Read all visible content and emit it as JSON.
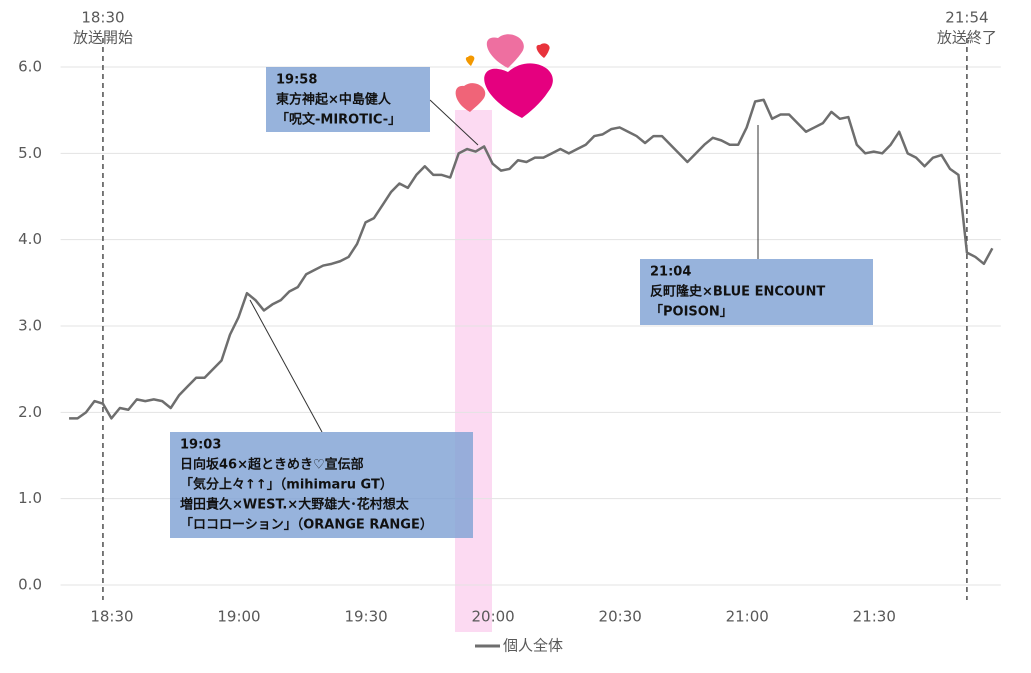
{
  "chart_data": {
    "type": "line",
    "x": [
      "18:22",
      "18:24",
      "18:26",
      "18:28",
      "18:30",
      "18:32",
      "18:34",
      "18:36",
      "18:38",
      "18:40",
      "18:42",
      "18:44",
      "18:46",
      "18:48",
      "18:50",
      "18:52",
      "18:54",
      "18:56",
      "18:58",
      "19:00",
      "19:02",
      "19:04",
      "19:06",
      "19:08",
      "19:10",
      "19:12",
      "19:14",
      "19:16",
      "19:18",
      "19:20",
      "19:22",
      "19:24",
      "19:26",
      "19:28",
      "19:30",
      "19:32",
      "19:34",
      "19:36",
      "19:38",
      "19:40",
      "19:42",
      "19:44",
      "19:46",
      "19:48",
      "19:50",
      "19:52",
      "19:54",
      "19:56",
      "19:58",
      "20:00",
      "20:02",
      "20:04",
      "20:06",
      "20:08",
      "20:10",
      "20:12",
      "20:14",
      "20:16",
      "20:18",
      "20:20",
      "20:22",
      "20:24",
      "20:26",
      "20:28",
      "20:30",
      "20:32",
      "20:34",
      "20:36",
      "20:38",
      "20:40",
      "20:42",
      "20:44",
      "20:46",
      "20:48",
      "20:50",
      "20:52",
      "20:54",
      "20:56",
      "20:58",
      "21:00",
      "21:02",
      "21:04",
      "21:06",
      "21:08",
      "21:10",
      "21:12",
      "21:14",
      "21:16",
      "21:18",
      "21:20",
      "21:22",
      "21:24",
      "21:26",
      "21:28",
      "21:30",
      "21:32",
      "21:34",
      "21:36",
      "21:38",
      "21:40",
      "21:42",
      "21:44",
      "21:46",
      "21:48",
      "21:50",
      "21:52",
      "21:54",
      "21:56",
      "21:58",
      "22:00"
    ],
    "series": [
      {
        "name": "個人全体",
        "color": "#6e6e6e",
        "values": [
          1.93,
          1.93,
          2.0,
          2.13,
          2.1,
          1.93,
          2.05,
          2.03,
          2.15,
          2.13,
          2.15,
          2.13,
          2.05,
          2.2,
          2.3,
          2.4,
          2.4,
          2.5,
          2.6,
          2.9,
          3.1,
          3.38,
          3.3,
          3.18,
          3.25,
          3.3,
          3.4,
          3.45,
          3.6,
          3.65,
          3.7,
          3.72,
          3.75,
          3.8,
          3.95,
          4.2,
          4.25,
          4.4,
          4.55,
          4.65,
          4.6,
          4.75,
          4.85,
          4.75,
          4.75,
          4.72,
          5.0,
          5.05,
          5.02,
          5.08,
          4.88,
          4.8,
          4.82,
          4.92,
          4.9,
          4.95,
          4.95,
          5.0,
          5.05,
          5.0,
          5.05,
          5.1,
          5.2,
          5.22,
          5.28,
          5.3,
          5.25,
          5.2,
          5.12,
          5.2,
          5.2,
          5.1,
          5.0,
          4.9,
          5.0,
          5.1,
          5.18,
          5.15,
          5.1,
          5.1,
          5.3,
          5.6,
          5.62,
          5.4,
          5.45,
          5.45,
          5.35,
          5.25,
          5.3,
          5.35,
          5.48,
          5.4,
          5.42,
          5.1,
          5.0,
          5.02,
          5.0,
          5.1,
          5.25,
          5.0,
          4.95,
          4.85,
          4.95,
          4.98,
          4.82,
          4.75,
          3.85,
          3.8,
          3.72,
          3.9
        ]
      }
    ],
    "xlim": [
      "18:20",
      "22:02"
    ],
    "xticks": [
      "18:30",
      "19:00",
      "19:30",
      "20:00",
      "20:30",
      "21:00",
      "21:30"
    ],
    "ylim": [
      0,
      6
    ],
    "yticks": [
      {
        "value": 0,
        "label": "0.0"
      },
      {
        "value": 1,
        "label": "1.0"
      },
      {
        "value": 2,
        "label": "2.0"
      },
      {
        "value": 3,
        "label": "3.0"
      },
      {
        "value": 4,
        "label": "4.0"
      },
      {
        "value": 5,
        "label": "5.0"
      },
      {
        "value": 6,
        "label": "6.0"
      }
    ],
    "grid": true,
    "legend": "bottom",
    "markers": [
      {
        "time": "18:30",
        "label": "放送開始"
      },
      {
        "time": "21:54",
        "label": "放送終了"
      }
    ],
    "annotations": [
      {
        "lines": [
          "19:58",
          "東方神起×中島健人",
          "「呪文-MIROTIC-」"
        ]
      },
      {
        "lines": [
          "21:04",
          "反町隆史×BLUE ENCOUNT",
          "「POISON」"
        ]
      },
      {
        "lines": [
          "19:03",
          "日向坂46×超ときめき♡宣伝部",
          "「気分上々↑↑」（mihimaru GT）",
          "増田貴久×WEST.×大野雄大･花村想太",
          "「ロコローション」（ORANGE RANGE）"
        ]
      }
    ]
  }
}
